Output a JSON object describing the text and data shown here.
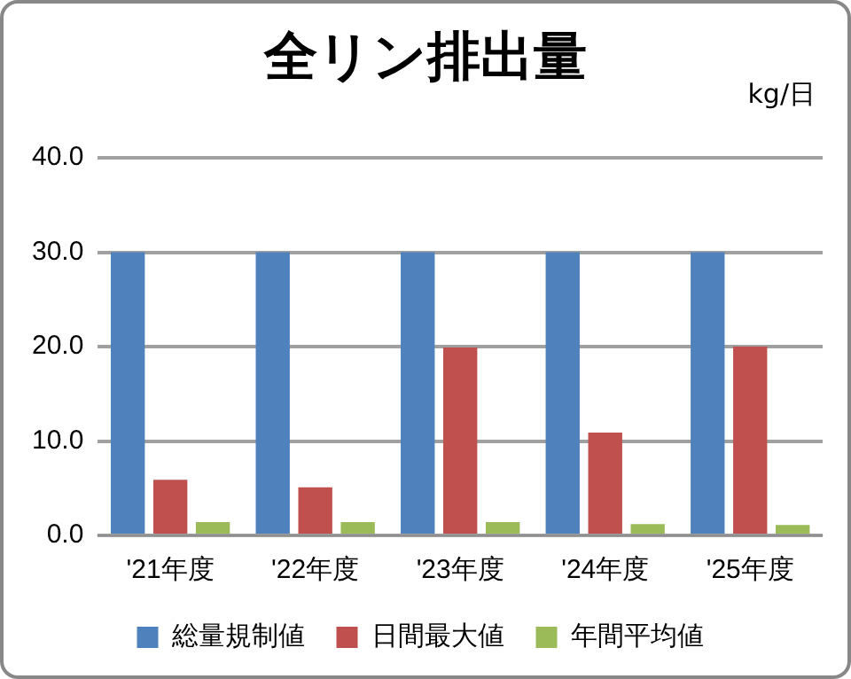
{
  "chart_data": {
    "type": "bar",
    "title": "全リン排出量",
    "annotations": [
      "kg/日"
    ],
    "categories": [
      "'21年度",
      "'22年度",
      "'23年度",
      "'24年度",
      "'25年度"
    ],
    "series": [
      {
        "name": "総量規制値",
        "color": "#4f81bd",
        "values": [
          30,
          30,
          30,
          30,
          30
        ]
      },
      {
        "name": "日間最大値",
        "color": "#c0504d",
        "values": [
          5.9,
          5.1,
          19.9,
          10.9,
          20
        ]
      },
      {
        "name": "年間平均値",
        "color": "#9bbb59",
        "values": [
          1.4,
          1.4,
          1.4,
          1.2,
          1.1
        ]
      }
    ],
    "ylim": [
      0,
      40
    ],
    "yticks": [
      {
        "value": 0,
        "label": "0.0"
      },
      {
        "value": 10,
        "label": "10.0"
      },
      {
        "value": 20,
        "label": "20.0"
      },
      {
        "value": 30,
        "label": "30.0"
      },
      {
        "value": 40,
        "label": "40.0"
      }
    ],
    "grid": "y",
    "legend": "bottom"
  }
}
